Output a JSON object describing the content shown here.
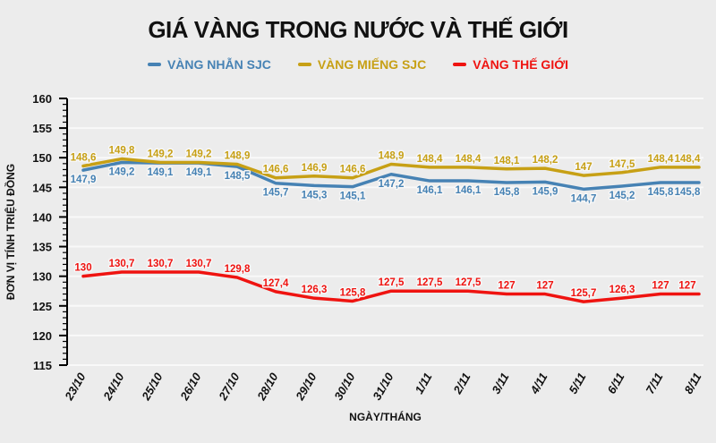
{
  "title": "GIÁ VÀNG TRONG NƯỚC VÀ THẾ GIỚI",
  "colors": {
    "background": "#ececec",
    "grid": "#f9f9f9",
    "axis": "#000000",
    "text": "#111111"
  },
  "chart_data": {
    "type": "line",
    "categories": [
      "23/10",
      "24/10",
      "25/10",
      "26/10",
      "27/10",
      "28/10",
      "29/10",
      "30/10",
      "31/10",
      "1/11",
      "2/11",
      "3/11",
      "4/11",
      "5/11",
      "6/11",
      "7/11",
      "8/11"
    ],
    "series": [
      {
        "name": "VÀNG NHẪN SJC",
        "color": "#4682b4",
        "label_position": "below",
        "values": [
          147.9,
          149.2,
          149.1,
          149.1,
          148.5,
          145.7,
          145.3,
          145.1,
          147.2,
          146.1,
          146.1,
          145.8,
          145.9,
          144.7,
          145.2,
          145.8,
          145.8
        ],
        "labels": [
          "147,9",
          "149,2",
          "149,1",
          "149,1",
          "148,5",
          "145,7",
          "145,3",
          "145,1",
          "147,2",
          "146,1",
          "146,1",
          "145,8",
          "145,9",
          "144,7",
          "145,2",
          "145,8",
          "145,8"
        ]
      },
      {
        "name": "VÀNG MIẾNG SJC",
        "color": "#c7a015",
        "label_position": "above",
        "values": [
          148.6,
          149.8,
          149.2,
          149.2,
          148.9,
          146.6,
          146.9,
          146.6,
          148.9,
          148.4,
          148.4,
          148.1,
          148.2,
          147,
          147.5,
          148.4,
          148.4
        ],
        "labels": [
          "148,6",
          "149,8",
          "149,2",
          "149,2",
          "148,9",
          "146,6",
          "146,9",
          "146,6",
          "148,9",
          "148,4",
          "148,4",
          "148,1",
          "148,2",
          "147",
          "147,5",
          "148,4",
          "148,4"
        ]
      },
      {
        "name": "VÀNG THẾ GIỚI",
        "color": "#ef1310",
        "label_position": "above",
        "values": [
          130,
          130.7,
          130.7,
          130.7,
          129.8,
          127.4,
          126.3,
          125.8,
          127.5,
          127.5,
          127.5,
          127,
          127,
          125.7,
          126.3,
          127,
          127
        ],
        "labels": [
          "130",
          "130,7",
          "130,7",
          "130,7",
          "129,8",
          "127,4",
          "126,3",
          "125,8",
          "127,5",
          "127,5",
          "127,5",
          "127",
          "127",
          "125,7",
          "126,3",
          "127",
          "127"
        ]
      }
    ],
    "xlabel": "NGÀY/THÁNG",
    "ylabel": "ĐƠN VỊ TÍNH TRIỆU ĐỒNG",
    "ylim": [
      115,
      160
    ],
    "y_major_step": 5,
    "y_minor_step": 1,
    "grid": true,
    "legend_position": "top"
  }
}
